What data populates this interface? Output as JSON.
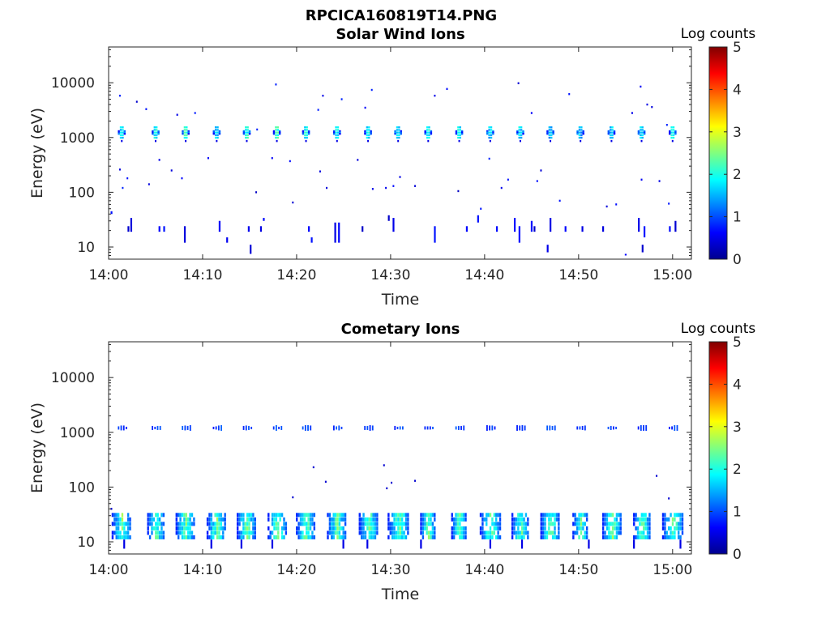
{
  "figure_title": "RPCICA160819T14.PNG",
  "chart_data": [
    {
      "type": "heatmap",
      "title": "Solar Wind Ions",
      "xlabel": "Time",
      "ylabel": "Energy (eV)",
      "x_ticks": [
        "14:00",
        "14:10",
        "14:20",
        "14:30",
        "14:40",
        "14:50",
        "15:00"
      ],
      "y_ticks": [
        "10",
        "100",
        "1000",
        "10000"
      ],
      "y_scale": "log",
      "xlim_minutes": [
        0,
        62
      ],
      "ylim": [
        6,
        45000
      ],
      "colorbar": {
        "title": "Log counts",
        "ticks": [
          "0",
          "1",
          "2",
          "3",
          "4",
          "5"
        ],
        "range": [
          0,
          5
        ],
        "colormap": "jet"
      },
      "pulses_minutes": [
        1.4,
        5.0,
        8.2,
        11.5,
        14.7,
        17.9,
        21.0,
        24.3,
        27.6,
        30.8,
        34.0,
        37.3,
        40.6,
        43.8,
        47.0,
        50.2,
        53.5,
        56.7,
        60.0
      ],
      "events": [
        {
          "t": 1.4,
          "e": 1200,
          "v": 1.8
        },
        {
          "t": 5.0,
          "e": 1200,
          "v": 2.0
        },
        {
          "t": 8.2,
          "e": 1200,
          "v": 2.2
        },
        {
          "t": 11.5,
          "e": 1200,
          "v": 1.8
        },
        {
          "t": 14.7,
          "e": 1200,
          "v": 2.1
        },
        {
          "t": 17.9,
          "e": 1200,
          "v": 2.2
        },
        {
          "t": 21.0,
          "e": 1200,
          "v": 2.0
        },
        {
          "t": 24.3,
          "e": 1200,
          "v": 2.0
        },
        {
          "t": 27.6,
          "e": 1200,
          "v": 1.9
        },
        {
          "t": 30.8,
          "e": 1200,
          "v": 1.8
        },
        {
          "t": 34.0,
          "e": 1200,
          "v": 2.0
        },
        {
          "t": 37.3,
          "e": 1200,
          "v": 1.9
        },
        {
          "t": 40.6,
          "e": 1200,
          "v": 1.7
        },
        {
          "t": 43.8,
          "e": 1200,
          "v": 1.8
        },
        {
          "t": 47.0,
          "e": 1200,
          "v": 1.6
        },
        {
          "t": 50.2,
          "e": 1200,
          "v": 1.6
        },
        {
          "t": 53.5,
          "e": 1200,
          "v": 1.7
        },
        {
          "t": 56.7,
          "e": 1200,
          "v": 1.8
        },
        {
          "t": 60.0,
          "e": 1200,
          "v": 1.9
        }
      ],
      "scatter": [
        {
          "t": 1.2,
          "e": 5800
        },
        {
          "t": 3.0,
          "e": 4500
        },
        {
          "t": 4.0,
          "e": 3300
        },
        {
          "t": 7.3,
          "e": 2600
        },
        {
          "t": 9.2,
          "e": 2800
        },
        {
          "t": 15.8,
          "e": 1400
        },
        {
          "t": 17.8,
          "e": 9300
        },
        {
          "t": 22.3,
          "e": 3200
        },
        {
          "t": 22.8,
          "e": 5800
        },
        {
          "t": 24.8,
          "e": 5000
        },
        {
          "t": 27.3,
          "e": 3500
        },
        {
          "t": 28.0,
          "e": 7400
        },
        {
          "t": 34.7,
          "e": 5800
        },
        {
          "t": 36.0,
          "e": 7700
        },
        {
          "t": 43.6,
          "e": 9800
        },
        {
          "t": 45.0,
          "e": 2800
        },
        {
          "t": 49.0,
          "e": 6200
        },
        {
          "t": 55.7,
          "e": 2800
        },
        {
          "t": 56.6,
          "e": 8500
        },
        {
          "t": 57.3,
          "e": 4000
        },
        {
          "t": 57.8,
          "e": 3600
        },
        {
          "t": 59.4,
          "e": 1700
        },
        {
          "t": 1.2,
          "e": 260
        },
        {
          "t": 1.5,
          "e": 120
        },
        {
          "t": 2.0,
          "e": 180
        },
        {
          "t": 4.3,
          "e": 140
        },
        {
          "t": 5.4,
          "e": 390
        },
        {
          "t": 6.7,
          "e": 250
        },
        {
          "t": 7.8,
          "e": 180
        },
        {
          "t": 10.6,
          "e": 420
        },
        {
          "t": 15.7,
          "e": 100
        },
        {
          "t": 17.4,
          "e": 420
        },
        {
          "t": 19.3,
          "e": 370
        },
        {
          "t": 22.5,
          "e": 240
        },
        {
          "t": 23.2,
          "e": 120
        },
        {
          "t": 26.5,
          "e": 390
        },
        {
          "t": 28.1,
          "e": 115
        },
        {
          "t": 29.5,
          "e": 120
        },
        {
          "t": 30.3,
          "e": 130
        },
        {
          "t": 31.0,
          "e": 190
        },
        {
          "t": 32.6,
          "e": 130
        },
        {
          "t": 37.2,
          "e": 105
        },
        {
          "t": 39.6,
          "e": 50
        },
        {
          "t": 40.5,
          "e": 410
        },
        {
          "t": 41.8,
          "e": 120
        },
        {
          "t": 42.5,
          "e": 170
        },
        {
          "t": 45.6,
          "e": 160
        },
        {
          "t": 46.0,
          "e": 250
        },
        {
          "t": 48.0,
          "e": 70
        },
        {
          "t": 53.0,
          "e": 55
        },
        {
          "t": 54.0,
          "e": 60
        },
        {
          "t": 56.7,
          "e": 170
        },
        {
          "t": 58.6,
          "e": 160
        },
        {
          "t": 59.6,
          "e": 62
        },
        {
          "t": 19.6,
          "e": 65
        }
      ],
      "low_energy_bars": [
        {
          "t": 0.3,
          "lo": 40,
          "hi": 45
        },
        {
          "t": 2.1,
          "lo": 19,
          "hi": 24
        },
        {
          "t": 2.4,
          "lo": 19,
          "hi": 34
        },
        {
          "t": 5.4,
          "lo": 19,
          "hi": 24
        },
        {
          "t": 5.9,
          "lo": 19,
          "hi": 24
        },
        {
          "t": 8.1,
          "lo": 12,
          "hi": 24
        },
        {
          "t": 11.8,
          "lo": 19,
          "hi": 30
        },
        {
          "t": 12.6,
          "lo": 12,
          "hi": 15
        },
        {
          "t": 14.9,
          "lo": 19,
          "hi": 24
        },
        {
          "t": 15.1,
          "lo": 7.5,
          "hi": 11
        },
        {
          "t": 16.2,
          "lo": 19,
          "hi": 24
        },
        {
          "t": 16.5,
          "lo": 30,
          "hi": 34
        },
        {
          "t": 21.3,
          "lo": 19,
          "hi": 24
        },
        {
          "t": 21.6,
          "lo": 12,
          "hi": 15
        },
        {
          "t": 24.1,
          "lo": 12,
          "hi": 28
        },
        {
          "t": 24.5,
          "lo": 12,
          "hi": 28
        },
        {
          "t": 27.0,
          "lo": 19,
          "hi": 24
        },
        {
          "t": 29.8,
          "lo": 30,
          "hi": 38
        },
        {
          "t": 30.3,
          "lo": 19,
          "hi": 34
        },
        {
          "t": 34.7,
          "lo": 12,
          "hi": 24
        },
        {
          "t": 38.1,
          "lo": 19,
          "hi": 24
        },
        {
          "t": 39.3,
          "lo": 28,
          "hi": 38
        },
        {
          "t": 41.3,
          "lo": 19,
          "hi": 24
        },
        {
          "t": 43.2,
          "lo": 19,
          "hi": 34
        },
        {
          "t": 43.7,
          "lo": 12,
          "hi": 24
        },
        {
          "t": 45.0,
          "lo": 19,
          "hi": 30
        },
        {
          "t": 45.3,
          "lo": 19,
          "hi": 24
        },
        {
          "t": 46.7,
          "lo": 8,
          "hi": 11
        },
        {
          "t": 47.0,
          "lo": 19,
          "hi": 34
        },
        {
          "t": 48.6,
          "lo": 19,
          "hi": 24
        },
        {
          "t": 50.4,
          "lo": 19,
          "hi": 24
        },
        {
          "t": 52.6,
          "lo": 19,
          "hi": 24
        },
        {
          "t": 55.0,
          "lo": 7,
          "hi": 7.5
        },
        {
          "t": 56.4,
          "lo": 19,
          "hi": 34
        },
        {
          "t": 56.8,
          "lo": 8,
          "hi": 11
        },
        {
          "t": 57.0,
          "lo": 15,
          "hi": 24
        },
        {
          "t": 59.7,
          "lo": 19,
          "hi": 24
        },
        {
          "t": 60.3,
          "lo": 19,
          "hi": 30
        }
      ]
    },
    {
      "type": "heatmap",
      "title": "Cometary Ions",
      "xlabel": "Time",
      "ylabel": "Energy (eV)",
      "x_ticks": [
        "14:00",
        "14:10",
        "14:20",
        "14:30",
        "14:40",
        "14:50",
        "15:00"
      ],
      "y_ticks": [
        "10",
        "100",
        "1000",
        "10000"
      ],
      "y_scale": "log",
      "xlim_minutes": [
        0,
        62
      ],
      "ylim": [
        6,
        45000
      ],
      "colorbar": {
        "title": "Log counts",
        "ticks": [
          "0",
          "1",
          "2",
          "3",
          "4",
          "5"
        ],
        "range": [
          0,
          5
        ],
        "colormap": "jet"
      },
      "pulses_minutes": [
        1.4,
        5.0,
        8.2,
        11.5,
        14.7,
        17.9,
        21.0,
        24.3,
        27.6,
        30.8,
        34.0,
        37.3,
        40.6,
        43.8,
        47.0,
        50.2,
        53.5,
        56.7,
        60.0
      ],
      "high_band": {
        "energy": 1200,
        "value": 0.7
      },
      "low_band": {
        "emin": 11,
        "emax": 34,
        "peak_value": 2.0
      },
      "scatter": [
        {
          "t": 0.3,
          "e": 40
        },
        {
          "t": 19.6,
          "e": 65
        },
        {
          "t": 21.8,
          "e": 230
        },
        {
          "t": 23.1,
          "e": 125
        },
        {
          "t": 29.3,
          "e": 250
        },
        {
          "t": 29.6,
          "e": 95
        },
        {
          "t": 30.1,
          "e": 120
        },
        {
          "t": 32.6,
          "e": 130
        },
        {
          "t": 58.3,
          "e": 160
        },
        {
          "t": 59.6,
          "e": 62
        }
      ]
    }
  ]
}
